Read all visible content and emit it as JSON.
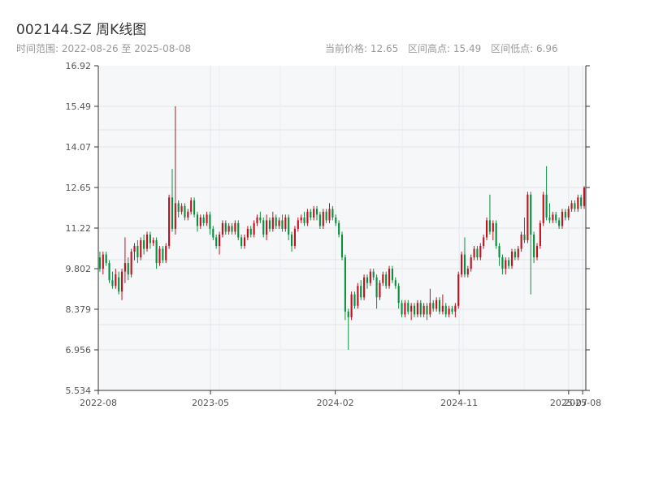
{
  "header": {
    "title": "002144.SZ 周K线图",
    "range_text": "时间范围: 2022-08-26 至 2025-08-08",
    "stats": {
      "current": "当前价格: 12.65",
      "high": "区间高点: 15.49",
      "low": "区间低点: 6.96"
    }
  },
  "chart_data": {
    "type": "candlestick",
    "title": "002144.SZ 周K线图",
    "x_range": [
      "2022-08-26",
      "2025-08-08"
    ],
    "x_tick_labels": [
      "2022-08",
      "2023-05",
      "2024-02",
      "2024-11",
      "2025-07",
      "2025-08"
    ],
    "y_tick_labels": [
      "16.92",
      "15.49",
      "14.07",
      "12.65",
      "11.22",
      "9.802",
      "8.379",
      "6.956",
      "5.534"
    ],
    "ylim": [
      5.534,
      16.92
    ],
    "grid": true,
    "up_color": "#c0121e",
    "down_color": "#0a8f3c",
    "summary": {
      "current": 12.65,
      "high": 15.49,
      "low": 6.96
    },
    "candles": [
      [
        10.2,
        9.8,
        10.4,
        9.7
      ],
      [
        9.8,
        10.3,
        10.4,
        9.6
      ],
      [
        10.3,
        10.0,
        10.4,
        9.9
      ],
      [
        10.0,
        9.4,
        10.1,
        9.3
      ],
      [
        9.4,
        9.2,
        9.7,
        9.1
      ],
      [
        9.2,
        9.6,
        9.8,
        9.1
      ],
      [
        9.5,
        9.0,
        9.7,
        8.9
      ],
      [
        9.0,
        9.7,
        9.8,
        8.7
      ],
      [
        9.7,
        10.0,
        10.9,
        9.3
      ],
      [
        10.0,
        9.6,
        10.2,
        9.4
      ],
      [
        9.6,
        10.4,
        10.5,
        9.5
      ],
      [
        10.4,
        10.6,
        10.7,
        10.1
      ],
      [
        10.6,
        10.2,
        10.8,
        10.0
      ],
      [
        10.2,
        10.8,
        10.9,
        10.1
      ],
      [
        10.8,
        10.5,
        11.0,
        10.3
      ],
      [
        10.5,
        11.0,
        11.1,
        10.4
      ],
      [
        11.0,
        10.7,
        11.1,
        10.5
      ],
      [
        10.7,
        10.8,
        10.9,
        10.6
      ],
      [
        10.8,
        10.0,
        10.9,
        9.8
      ],
      [
        10.0,
        10.5,
        10.6,
        9.9
      ],
      [
        10.5,
        10.1,
        10.6,
        10.0
      ],
      [
        10.1,
        10.6,
        10.7,
        10.0
      ],
      [
        10.6,
        12.3,
        12.4,
        10.5
      ],
      [
        12.3,
        11.2,
        13.3,
        11.1
      ],
      [
        11.2,
        12.1,
        15.5,
        11.0
      ],
      [
        12.1,
        11.8,
        12.2,
        11.6
      ],
      [
        11.8,
        12.0,
        12.1,
        11.7
      ],
      [
        12.0,
        11.6,
        12.1,
        11.5
      ],
      [
        11.6,
        11.8,
        11.9,
        11.5
      ],
      [
        11.8,
        12.2,
        12.3,
        11.7
      ],
      [
        12.2,
        11.7,
        12.3,
        11.6
      ],
      [
        11.7,
        11.3,
        11.8,
        11.1
      ],
      [
        11.3,
        11.6,
        11.7,
        11.2
      ],
      [
        11.6,
        11.4,
        11.7,
        11.3
      ],
      [
        11.4,
        11.7,
        11.8,
        11.3
      ],
      [
        11.7,
        11.2,
        11.8,
        11.0
      ],
      [
        11.2,
        10.9,
        11.3,
        10.8
      ],
      [
        10.9,
        10.6,
        11.0,
        10.5
      ],
      [
        10.6,
        11.0,
        11.1,
        10.3
      ],
      [
        11.0,
        11.4,
        11.5,
        10.9
      ],
      [
        11.4,
        11.1,
        11.5,
        11.0
      ],
      [
        11.1,
        11.3,
        11.4,
        11.0
      ],
      [
        11.3,
        11.1,
        11.4,
        11.0
      ],
      [
        11.1,
        11.4,
        11.5,
        11.0
      ],
      [
        11.4,
        10.9,
        11.5,
        10.8
      ],
      [
        10.9,
        10.6,
        11.0,
        10.5
      ],
      [
        10.6,
        10.9,
        11.0,
        10.5
      ],
      [
        10.9,
        11.2,
        11.3,
        10.8
      ],
      [
        11.2,
        11.0,
        11.3,
        10.9
      ],
      [
        11.0,
        11.4,
        11.5,
        10.9
      ],
      [
        11.4,
        11.6,
        11.7,
        11.3
      ],
      [
        11.6,
        11.5,
        11.8,
        11.4
      ],
      [
        11.5,
        11.0,
        11.6,
        10.9
      ],
      [
        11.0,
        11.5,
        11.7,
        10.8
      ],
      [
        11.5,
        11.2,
        11.6,
        11.1
      ],
      [
        11.2,
        11.6,
        11.8,
        11.1
      ],
      [
        11.6,
        11.3,
        11.7,
        11.2
      ],
      [
        11.3,
        11.5,
        11.6,
        11.2
      ],
      [
        11.5,
        11.2,
        11.7,
        11.1
      ],
      [
        11.2,
        11.6,
        11.7,
        11.1
      ],
      [
        11.6,
        11.0,
        11.7,
        10.8
      ],
      [
        11.0,
        10.6,
        11.1,
        10.4
      ],
      [
        10.6,
        11.2,
        11.3,
        10.5
      ],
      [
        11.2,
        11.5,
        11.6,
        11.1
      ],
      [
        11.5,
        11.6,
        11.7,
        11.4
      ],
      [
        11.6,
        11.4,
        11.8,
        11.3
      ],
      [
        11.4,
        11.8,
        11.9,
        11.3
      ],
      [
        11.8,
        11.6,
        11.9,
        11.5
      ],
      [
        11.6,
        11.9,
        12.0,
        11.5
      ],
      [
        11.9,
        11.7,
        12.0,
        11.5
      ],
      [
        11.7,
        11.3,
        11.8,
        11.2
      ],
      [
        11.3,
        11.8,
        11.9,
        11.2
      ],
      [
        11.8,
        11.5,
        11.9,
        11.4
      ],
      [
        11.5,
        11.9,
        12.1,
        11.4
      ],
      [
        11.9,
        11.6,
        12.0,
        11.5
      ],
      [
        11.6,
        11.4,
        11.7,
        11.3
      ],
      [
        11.4,
        11.0,
        11.5,
        10.9
      ],
      [
        11.0,
        10.2,
        11.1,
        10.1
      ],
      [
        10.2,
        8.3,
        10.3,
        8.0
      ],
      [
        8.3,
        8.1,
        8.4,
        6.96
      ],
      [
        8.1,
        8.9,
        9.0,
        8.0
      ],
      [
        8.9,
        8.5,
        9.0,
        8.4
      ],
      [
        8.5,
        9.2,
        9.3,
        8.4
      ],
      [
        9.2,
        8.8,
        9.4,
        8.7
      ],
      [
        8.8,
        9.5,
        9.6,
        8.7
      ],
      [
        9.5,
        9.3,
        9.6,
        9.1
      ],
      [
        9.3,
        9.7,
        9.8,
        9.2
      ],
      [
        9.7,
        9.5,
        9.8,
        9.4
      ],
      [
        9.5,
        8.8,
        9.6,
        8.4
      ],
      [
        8.8,
        9.3,
        9.4,
        8.7
      ],
      [
        9.3,
        9.6,
        9.7,
        9.2
      ],
      [
        9.6,
        9.2,
        9.7,
        9.1
      ],
      [
        9.2,
        9.8,
        9.9,
        9.1
      ],
      [
        9.8,
        9.4,
        9.9,
        9.3
      ],
      [
        9.4,
        9.2,
        9.5,
        9.1
      ],
      [
        9.2,
        8.6,
        9.3,
        8.4
      ],
      [
        8.6,
        8.2,
        8.7,
        8.1
      ],
      [
        8.2,
        8.6,
        8.7,
        8.1
      ],
      [
        8.6,
        8.3,
        8.7,
        8.2
      ],
      [
        8.3,
        8.5,
        8.6,
        8.0
      ],
      [
        8.5,
        8.2,
        8.6,
        8.1
      ],
      [
        8.2,
        8.6,
        8.7,
        8.1
      ],
      [
        8.6,
        8.2,
        8.7,
        8.1
      ],
      [
        8.2,
        8.5,
        8.6,
        8.1
      ],
      [
        8.5,
        8.2,
        8.6,
        8.0
      ],
      [
        8.2,
        8.6,
        9.1,
        8.1
      ],
      [
        8.6,
        8.4,
        8.7,
        8.3
      ],
      [
        8.4,
        8.7,
        8.8,
        8.3
      ],
      [
        8.7,
        8.3,
        8.8,
        8.2
      ],
      [
        8.3,
        8.5,
        8.9,
        8.2
      ],
      [
        8.5,
        8.2,
        8.6,
        8.1
      ],
      [
        8.2,
        8.4,
        8.5,
        8.1
      ],
      [
        8.4,
        8.3,
        8.5,
        8.2
      ],
      [
        8.3,
        8.5,
        8.6,
        8.1
      ],
      [
        8.5,
        9.6,
        9.7,
        8.4
      ],
      [
        9.6,
        10.3,
        10.4,
        9.5
      ],
      [
        10.3,
        9.6,
        10.9,
        9.5
      ],
      [
        9.6,
        9.8,
        9.9,
        9.5
      ],
      [
        9.8,
        10.2,
        10.3,
        9.7
      ],
      [
        10.2,
        10.5,
        10.6,
        10.1
      ],
      [
        10.5,
        10.2,
        10.6,
        10.1
      ],
      [
        10.2,
        10.6,
        10.7,
        10.1
      ],
      [
        10.6,
        10.9,
        11.0,
        10.5
      ],
      [
        10.9,
        11.5,
        11.6,
        10.8
      ],
      [
        11.5,
        11.1,
        12.4,
        11.0
      ],
      [
        11.1,
        11.4,
        11.5,
        10.8
      ],
      [
        11.4,
        10.6,
        11.5,
        10.5
      ],
      [
        10.6,
        10.2,
        10.7,
        9.9
      ],
      [
        10.2,
        9.8,
        10.3,
        9.6
      ],
      [
        9.8,
        10.1,
        10.2,
        9.6
      ],
      [
        10.1,
        9.9,
        10.2,
        9.8
      ],
      [
        9.9,
        10.4,
        10.5,
        9.8
      ],
      [
        10.4,
        10.2,
        10.5,
        10.1
      ],
      [
        10.2,
        10.5,
        10.6,
        10.1
      ],
      [
        10.5,
        11.0,
        11.1,
        10.4
      ],
      [
        11.0,
        10.8,
        11.6,
        10.7
      ],
      [
        10.8,
        12.4,
        12.5,
        10.7
      ],
      [
        12.4,
        11.0,
        12.5,
        8.9
      ],
      [
        11.0,
        10.2,
        11.1,
        10.0
      ],
      [
        10.2,
        10.6,
        10.7,
        10.1
      ],
      [
        10.6,
        11.4,
        11.5,
        10.5
      ],
      [
        11.4,
        12.4,
        12.5,
        11.3
      ],
      [
        12.4,
        11.6,
        13.4,
        11.5
      ],
      [
        11.6,
        11.5,
        12.1,
        11.4
      ],
      [
        11.5,
        11.7,
        11.8,
        11.4
      ],
      [
        11.7,
        11.5,
        11.8,
        11.4
      ],
      [
        11.5,
        11.3,
        11.6,
        11.2
      ],
      [
        11.3,
        11.8,
        11.9,
        11.2
      ],
      [
        11.8,
        11.6,
        11.9,
        11.5
      ],
      [
        11.6,
        11.9,
        12.0,
        11.5
      ],
      [
        11.9,
        12.1,
        12.2,
        11.8
      ],
      [
        12.1,
        11.9,
        12.2,
        11.8
      ],
      [
        11.9,
        12.3,
        12.4,
        11.8
      ],
      [
        12.3,
        12.0,
        12.4,
        11.9
      ],
      [
        12.0,
        12.65,
        12.7,
        11.9
      ]
    ]
  }
}
